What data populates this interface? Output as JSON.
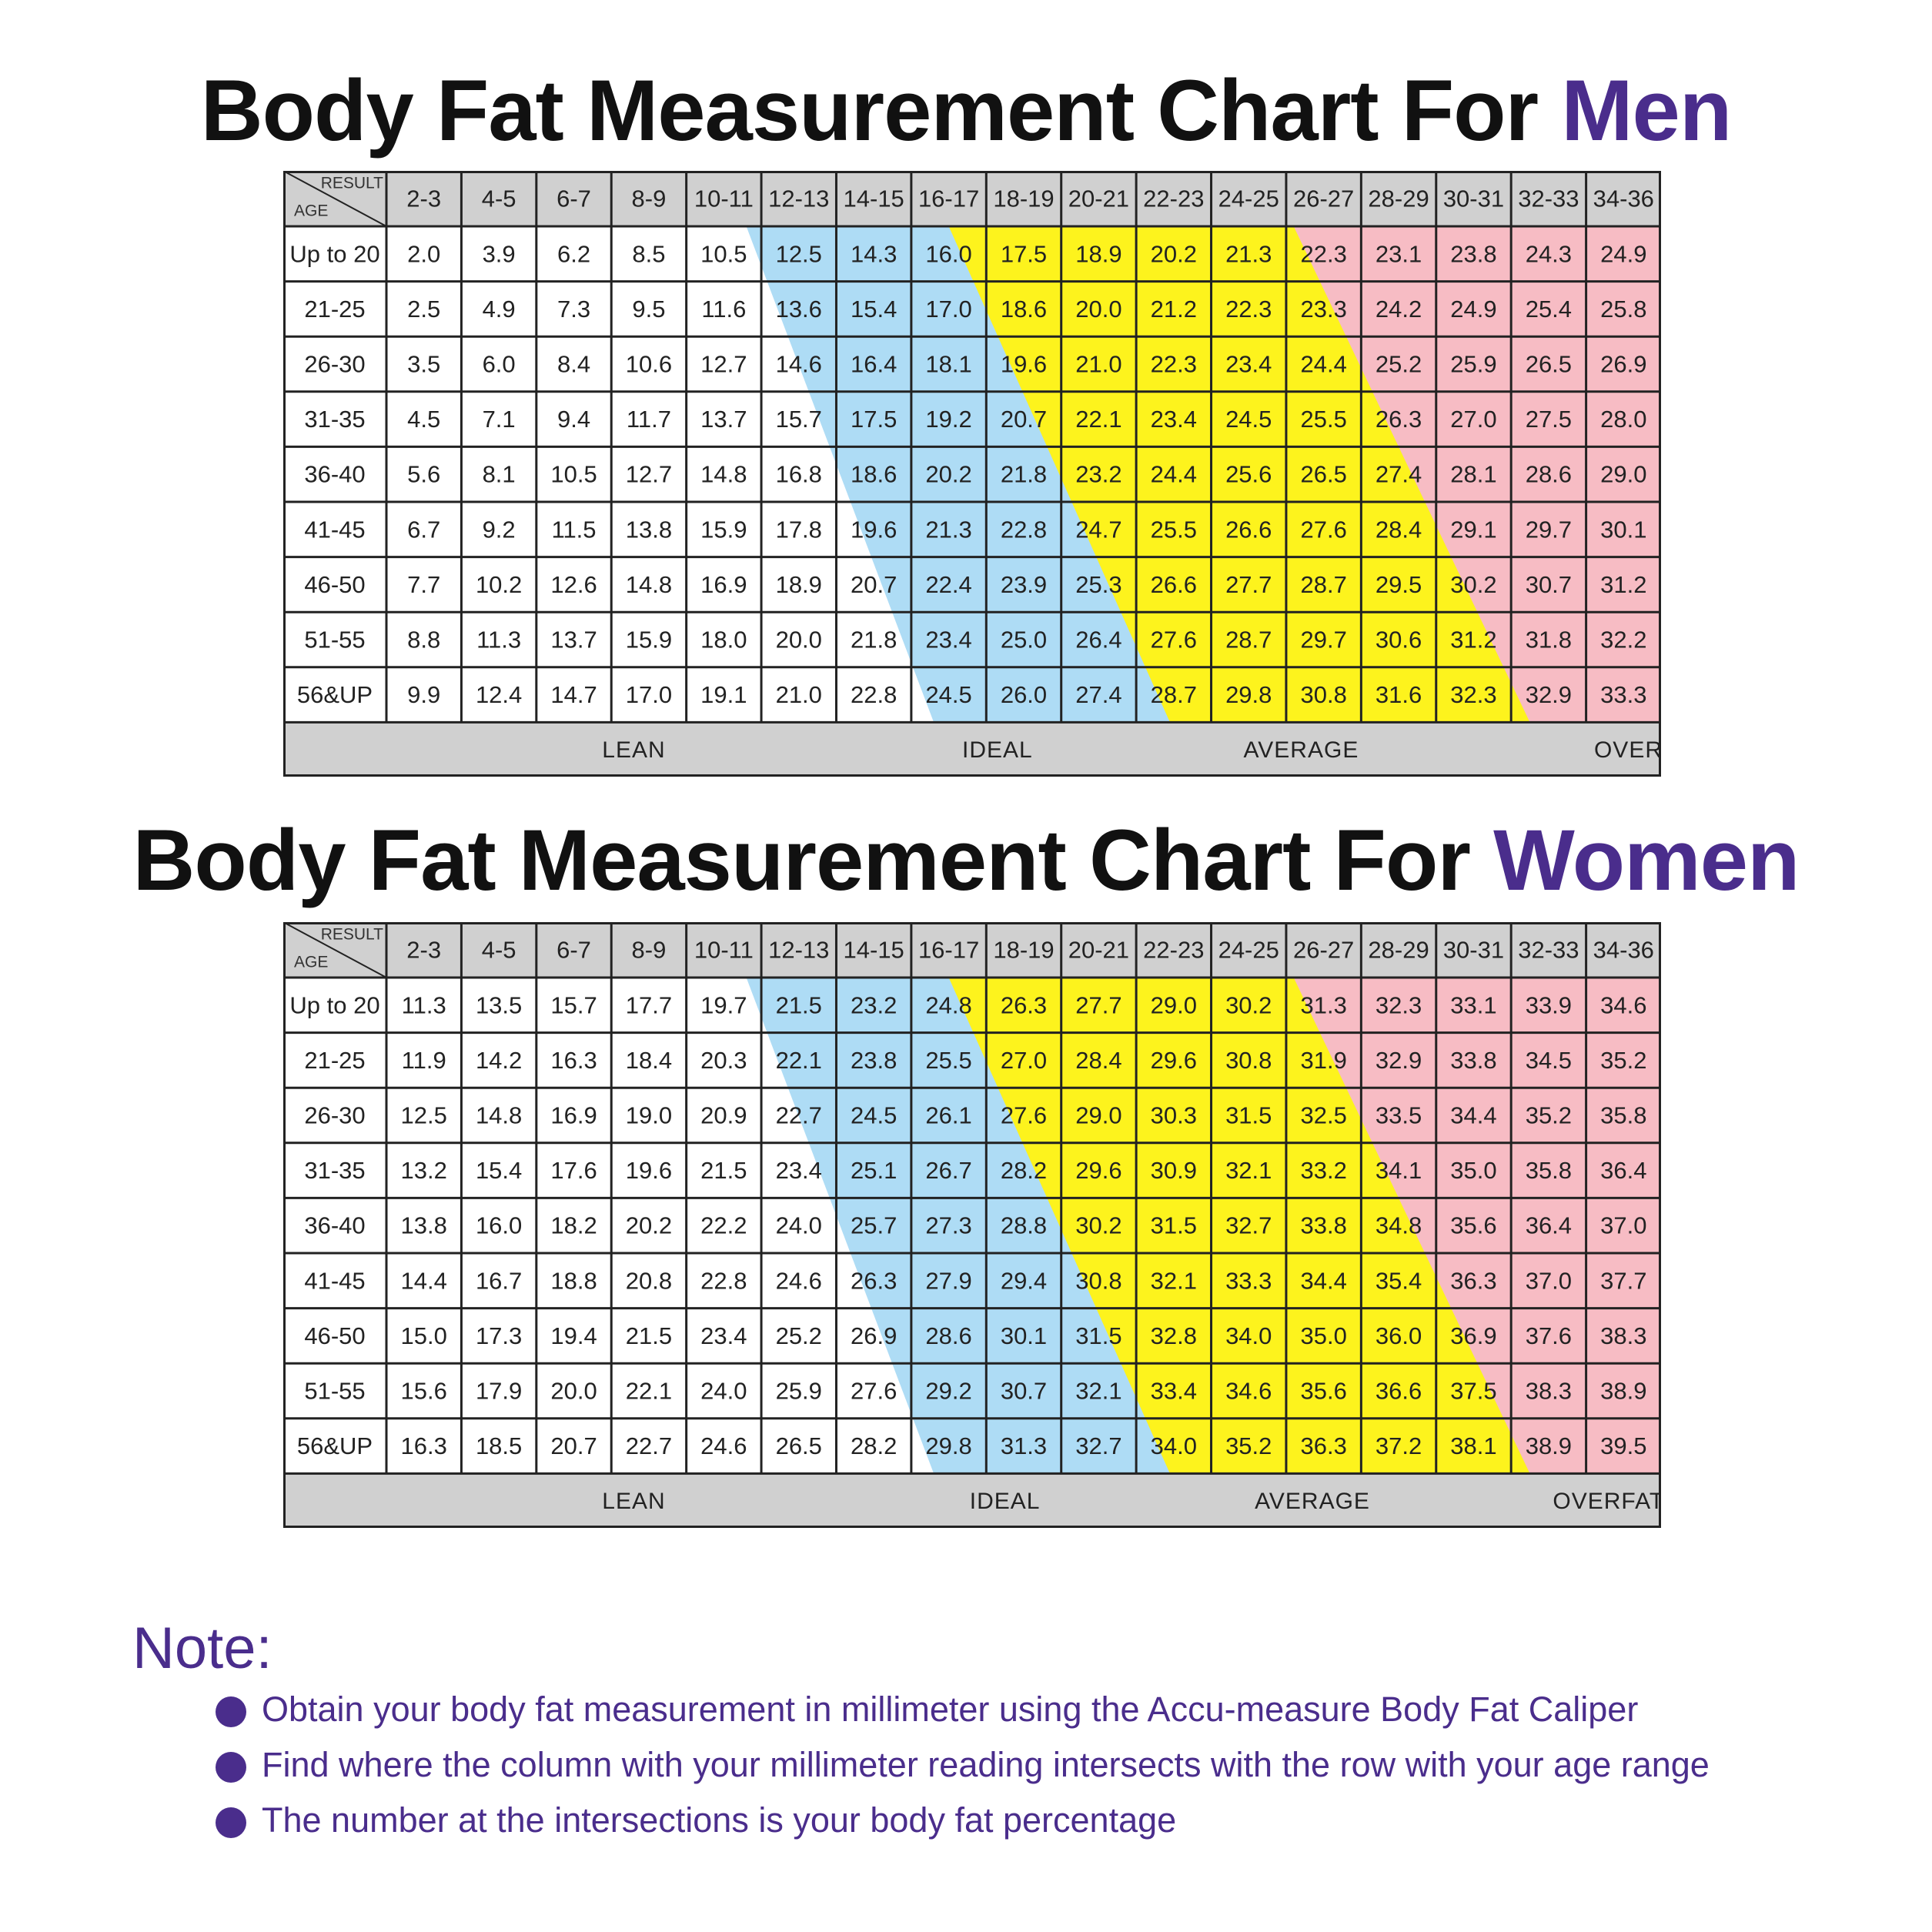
{
  "colors": {
    "accent": "#4a2d8c",
    "lean": "#ffffff",
    "ideal": "#aedcf5",
    "average": "#fdf31d",
    "overfat": "#f7bcc4",
    "header_bg": "#d0d0d0"
  },
  "men": {
    "title_prefix": "Body Fat Measurement Chart For ",
    "title_accent": "Men",
    "corner_result": "RESULT",
    "corner_age": "AGE",
    "columns": [
      "2-3",
      "4-5",
      "6-7",
      "8-9",
      "10-11",
      "12-13",
      "14-15",
      "16-17",
      "18-19",
      "20-21",
      "22-23",
      "24-25",
      "26-27",
      "28-29",
      "30-31",
      "32-33",
      "34-36"
    ],
    "rows": [
      {
        "age": "Up to 20",
        "values": [
          "2.0",
          "3.9",
          "6.2",
          "8.5",
          "10.5",
          "12.5",
          "14.3",
          "16.0",
          "17.5",
          "18.9",
          "20.2",
          "21.3",
          "22.3",
          "23.1",
          "23.8",
          "24.3",
          "24.9"
        ]
      },
      {
        "age": "21-25",
        "values": [
          "2.5",
          "4.9",
          "7.3",
          "9.5",
          "11.6",
          "13.6",
          "15.4",
          "17.0",
          "18.6",
          "20.0",
          "21.2",
          "22.3",
          "23.3",
          "24.2",
          "24.9",
          "25.4",
          "25.8"
        ]
      },
      {
        "age": "26-30",
        "values": [
          "3.5",
          "6.0",
          "8.4",
          "10.6",
          "12.7",
          "14.6",
          "16.4",
          "18.1",
          "19.6",
          "21.0",
          "22.3",
          "23.4",
          "24.4",
          "25.2",
          "25.9",
          "26.5",
          "26.9"
        ]
      },
      {
        "age": "31-35",
        "values": [
          "4.5",
          "7.1",
          "9.4",
          "11.7",
          "13.7",
          "15.7",
          "17.5",
          "19.2",
          "20.7",
          "22.1",
          "23.4",
          "24.5",
          "25.5",
          "26.3",
          "27.0",
          "27.5",
          "28.0"
        ]
      },
      {
        "age": "36-40",
        "values": [
          "5.6",
          "8.1",
          "10.5",
          "12.7",
          "14.8",
          "16.8",
          "18.6",
          "20.2",
          "21.8",
          "23.2",
          "24.4",
          "25.6",
          "26.5",
          "27.4",
          "28.1",
          "28.6",
          "29.0"
        ]
      },
      {
        "age": "41-45",
        "values": [
          "6.7",
          "9.2",
          "11.5",
          "13.8",
          "15.9",
          "17.8",
          "19.6",
          "21.3",
          "22.8",
          "24.7",
          "25.5",
          "26.6",
          "27.6",
          "28.4",
          "29.1",
          "29.7",
          "30.1"
        ]
      },
      {
        "age": "46-50",
        "values": [
          "7.7",
          "10.2",
          "12.6",
          "14.8",
          "16.9",
          "18.9",
          "20.7",
          "22.4",
          "23.9",
          "25.3",
          "26.6",
          "27.7",
          "28.7",
          "29.5",
          "30.2",
          "30.7",
          "31.2"
        ]
      },
      {
        "age": "51-55",
        "values": [
          "8.8",
          "11.3",
          "13.7",
          "15.9",
          "18.0",
          "20.0",
          "21.8",
          "23.4",
          "25.0",
          "26.4",
          "27.6",
          "28.7",
          "29.7",
          "30.6",
          "31.2",
          "31.8",
          "32.2"
        ]
      },
      {
        "age": "56&UP",
        "values": [
          "9.9",
          "12.4",
          "14.7",
          "17.0",
          "19.1",
          "21.0",
          "22.8",
          "24.5",
          "26.0",
          "27.4",
          "28.7",
          "29.8",
          "30.8",
          "31.6",
          "32.3",
          "32.9",
          "33.3"
        ]
      }
    ],
    "categories": [
      {
        "label": "LEAN",
        "col_center": 3.3
      },
      {
        "label": "IDEAL",
        "col_center": 8.15
      },
      {
        "label": "AVERAGE",
        "col_center": 12.2
      },
      {
        "label": "OVERFAT",
        "col_center": 16.85
      }
    ],
    "bands": {
      "ideal_start_top": 4.8,
      "ideal_start_bottom": 7.3,
      "average_start_top": 7.5,
      "average_start_bottom": 10.45,
      "overfat_start_top": 12.1,
      "overfat_start_bottom": 15.25
    }
  },
  "women": {
    "title_prefix": "Body Fat Measurement Chart For ",
    "title_accent": "Women",
    "corner_result": "RESULT",
    "corner_age": "AGE",
    "columns": [
      "2-3",
      "4-5",
      "6-7",
      "8-9",
      "10-11",
      "12-13",
      "14-15",
      "16-17",
      "18-19",
      "20-21",
      "22-23",
      "24-25",
      "26-27",
      "28-29",
      "30-31",
      "32-33",
      "34-36"
    ],
    "rows": [
      {
        "age": "Up to 20",
        "values": [
          "11.3",
          "13.5",
          "15.7",
          "17.7",
          "19.7",
          "21.5",
          "23.2",
          "24.8",
          "26.3",
          "27.7",
          "29.0",
          "30.2",
          "31.3",
          "32.3",
          "33.1",
          "33.9",
          "34.6"
        ]
      },
      {
        "age": "21-25",
        "values": [
          "11.9",
          "14.2",
          "16.3",
          "18.4",
          "20.3",
          "22.1",
          "23.8",
          "25.5",
          "27.0",
          "28.4",
          "29.6",
          "30.8",
          "31.9",
          "32.9",
          "33.8",
          "34.5",
          "35.2"
        ]
      },
      {
        "age": "26-30",
        "values": [
          "12.5",
          "14.8",
          "16.9",
          "19.0",
          "20.9",
          "22.7",
          "24.5",
          "26.1",
          "27.6",
          "29.0",
          "30.3",
          "31.5",
          "32.5",
          "33.5",
          "34.4",
          "35.2",
          "35.8"
        ]
      },
      {
        "age": "31-35",
        "values": [
          "13.2",
          "15.4",
          "17.6",
          "19.6",
          "21.5",
          "23.4",
          "25.1",
          "26.7",
          "28.2",
          "29.6",
          "30.9",
          "32.1",
          "33.2",
          "34.1",
          "35.0",
          "35.8",
          "36.4"
        ]
      },
      {
        "age": "36-40",
        "values": [
          "13.8",
          "16.0",
          "18.2",
          "20.2",
          "22.2",
          "24.0",
          "25.7",
          "27.3",
          "28.8",
          "30.2",
          "31.5",
          "32.7",
          "33.8",
          "34.8",
          "35.6",
          "36.4",
          "37.0"
        ]
      },
      {
        "age": "41-45",
        "values": [
          "14.4",
          "16.7",
          "18.8",
          "20.8",
          "22.8",
          "24.6",
          "26.3",
          "27.9",
          "29.4",
          "30.8",
          "32.1",
          "33.3",
          "34.4",
          "35.4",
          "36.3",
          "37.0",
          "37.7"
        ]
      },
      {
        "age": "46-50",
        "values": [
          "15.0",
          "17.3",
          "19.4",
          "21.5",
          "23.4",
          "25.2",
          "26.9",
          "28.6",
          "30.1",
          "31.5",
          "32.8",
          "34.0",
          "35.0",
          "36.0",
          "36.9",
          "37.6",
          "38.3"
        ]
      },
      {
        "age": "51-55",
        "values": [
          "15.6",
          "17.9",
          "20.0",
          "22.1",
          "24.0",
          "25.9",
          "27.6",
          "29.2",
          "30.7",
          "32.1",
          "33.4",
          "34.6",
          "35.6",
          "36.6",
          "37.5",
          "38.3",
          "38.9"
        ]
      },
      {
        "age": "56&UP",
        "values": [
          "16.3",
          "18.5",
          "20.7",
          "22.7",
          "24.6",
          "26.5",
          "28.2",
          "29.8",
          "31.3",
          "32.7",
          "34.0",
          "35.2",
          "36.3",
          "37.2",
          "38.1",
          "38.9",
          "39.5"
        ]
      }
    ],
    "categories": [
      {
        "label": "LEAN",
        "col_center": 3.3
      },
      {
        "label": "IDEAL",
        "col_center": 8.25
      },
      {
        "label": "AVERAGE",
        "col_center": 12.35
      },
      {
        "label": "OVERFAT",
        "col_center": 16.3
      }
    ],
    "bands": {
      "ideal_start_top": 4.8,
      "ideal_start_bottom": 7.3,
      "average_start_top": 7.5,
      "average_start_bottom": 10.45,
      "overfat_start_top": 12.1,
      "overfat_start_bottom": 15.25
    }
  },
  "note": {
    "heading": "Note:",
    "items": [
      "Obtain your body fat measurement in millimeter using the Accu-measure Body Fat Caliper",
      "Find where the column with your millimeter reading intersects with the row with your age range",
      "The number at the intersections is your body fat percentage"
    ]
  }
}
